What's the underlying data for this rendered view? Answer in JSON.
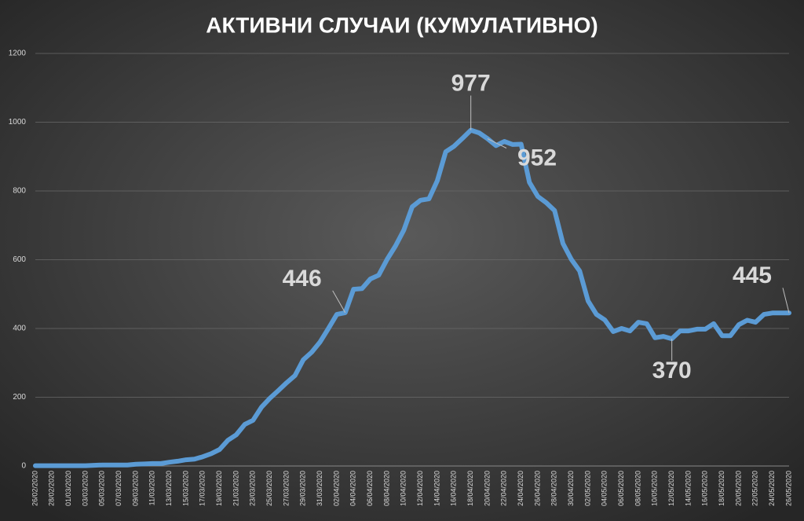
{
  "chart_data": {
    "type": "line",
    "title": "АКТИВНИ СЛУЧАИ (КУМУЛАТИВНО)",
    "categories": [
      "26/02/2020",
      null,
      "28/02/2020",
      null,
      "01/03/2020",
      null,
      "03/03/2020",
      null,
      "05/03/2020",
      null,
      "07/03/2020",
      null,
      "09/03/2020",
      null,
      "11/03/2020",
      null,
      "13/03/2020",
      null,
      "15/03/2020",
      null,
      "17/03/2020",
      null,
      "19/03/2020",
      null,
      "21/03/2020",
      null,
      "23/03/2020",
      null,
      "25/03/2020",
      null,
      "27/03/2020",
      null,
      "29/03/2020",
      null,
      "31/03/2020",
      null,
      "02/04/2020",
      null,
      "04/04/2020",
      null,
      "06/04/2020",
      null,
      "08/04/2020",
      null,
      "10/04/2020",
      null,
      "12/04/2020",
      null,
      "14/04/2020",
      null,
      "16/04/2020",
      null,
      "18/04/2020",
      null,
      "20/04/2020",
      null,
      "22/04/2020",
      null,
      "24/04/2020",
      null,
      "26/04/2020",
      null,
      "28/04/2020",
      null,
      "30/04/2020",
      null,
      "02/05/2020",
      null,
      "04/05/2020",
      null,
      "06/05/2020",
      null,
      "08/05/2020",
      null,
      "10/05/2020",
      null,
      "12/05/2020",
      null,
      "14/05/2020",
      null,
      "16/05/2020",
      null,
      "18/05/2020",
      null,
      "20/05/2020",
      null,
      "22/05/2020",
      null,
      "24/05/2020",
      null,
      "26/05/2020"
    ],
    "series": [
      {
        "color": "#5b9bd5",
        "values": [
          1,
          1,
          1,
          1,
          1,
          1,
          1,
          2,
          3,
          3,
          3,
          3,
          5,
          6,
          7,
          7,
          11,
          14,
          18,
          20,
          27,
          36,
          48,
          75,
          91,
          121,
          133,
          171,
          197,
          219,
          242,
          263,
          309,
          331,
          361,
          400,
          441,
          446,
          514,
          516,
          544,
          555,
          601,
          640,
          686,
          754,
          773,
          777,
          830,
          914,
          930,
          953,
          977,
          969,
          952,
          932,
          944,
          935,
          936,
          825,
          784,
          766,
          743,
          647,
          601,
          567,
          480,
          441,
          425,
          391,
          400,
          393,
          418,
          414,
          373,
          377,
          370,
          393,
          393,
          398,
          398,
          414,
          379,
          379,
          411,
          424,
          418,
          441,
          445,
          445,
          445
        ],
        "value_labels": [
          null,
          null,
          null,
          null,
          null,
          null,
          null,
          null,
          null,
          null,
          null,
          null,
          null,
          null,
          null,
          null,
          null,
          null,
          null,
          null,
          null,
          null,
          null,
          null,
          null,
          null,
          null,
          null,
          null,
          null,
          null,
          null,
          null,
          null,
          null,
          null,
          null,
          "446",
          null,
          null,
          null,
          null,
          null,
          null,
          null,
          null,
          null,
          null,
          null,
          null,
          null,
          null,
          "977",
          null,
          "952",
          null,
          null,
          null,
          null,
          null,
          null,
          null,
          null,
          null,
          null,
          null,
          null,
          null,
          null,
          null,
          null,
          null,
          null,
          null,
          null,
          null,
          "370",
          null,
          null,
          null,
          null,
          null,
          null,
          null,
          null,
          null,
          null,
          null,
          null,
          null,
          "445"
        ]
      }
    ],
    "ylim": [
      0,
      1200
    ],
    "yticks": [
      0,
      200,
      400,
      600,
      800,
      1000,
      1200
    ],
    "grid": true
  }
}
